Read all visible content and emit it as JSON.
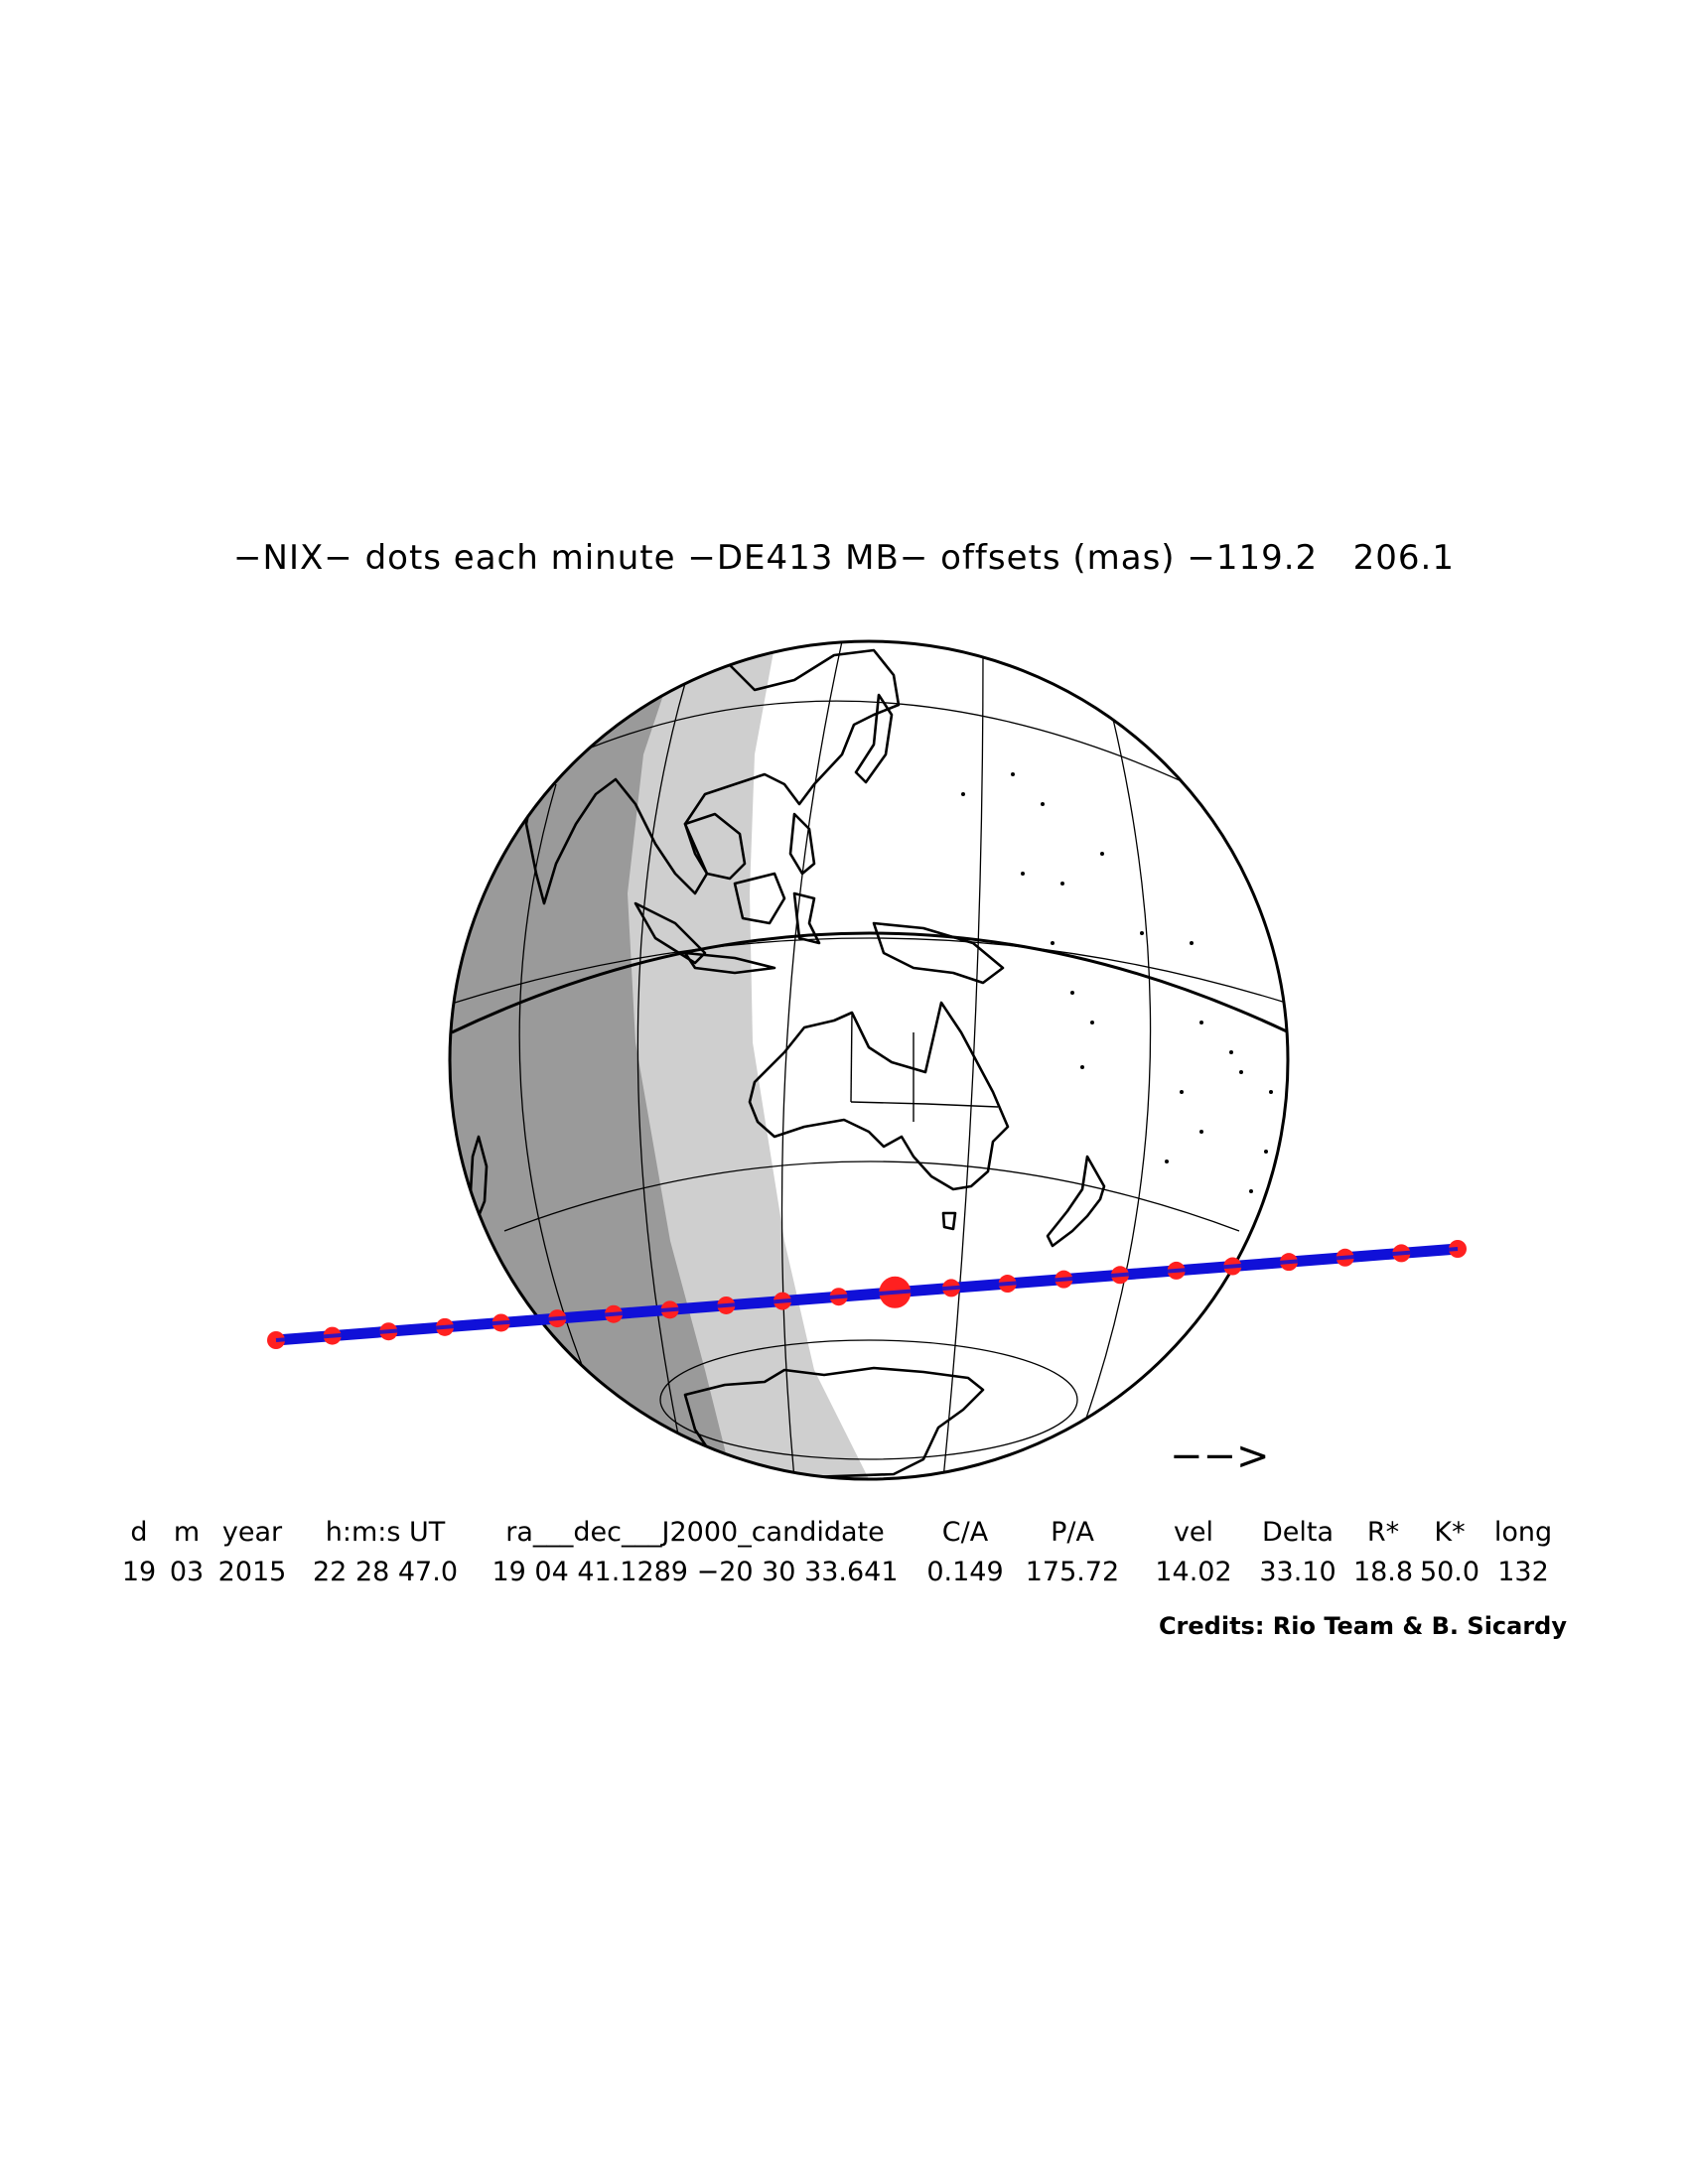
{
  "title": "−NIX− dots each minute −DE413 MB− offsets (mas) −119.2   206.1",
  "colors": {
    "track": "#1010d8",
    "dots": "#ff2020",
    "night": "#9a9a9a",
    "twilight": "#cfcfcf",
    "day": "#ffffff"
  },
  "direction_arrow": "−−>",
  "table": {
    "headers": [
      "d",
      "m",
      "year",
      "h:m:s UT",
      "ra___dec___J2000_candidate",
      "C/A",
      "P/A",
      "vel",
      "Delta",
      "R*",
      "K*",
      "long"
    ],
    "values": [
      "19",
      "03",
      "2015",
      "22 28 47.0",
      "19 04 41.1289 −20 30 33.641",
      "0.149",
      "175.72",
      "14.02",
      "33.10",
      "18.8",
      "50.0",
      "132"
    ]
  },
  "credits": "Credits: Rio Team & B. Sicardy"
}
